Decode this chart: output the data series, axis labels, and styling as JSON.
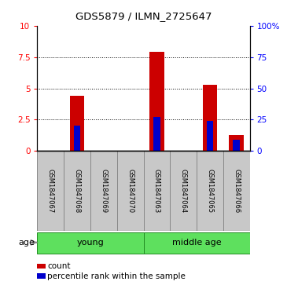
{
  "title": "GDS5879 / ILMN_2725647",
  "samples": [
    "GSM1847067",
    "GSM1847068",
    "GSM1847069",
    "GSM1847070",
    "GSM1847063",
    "GSM1847064",
    "GSM1847065",
    "GSM1847066"
  ],
  "count_values": [
    0,
    4.4,
    0,
    0,
    7.9,
    0,
    5.3,
    1.3
  ],
  "percentile_values": [
    0,
    20,
    0,
    0,
    27,
    0,
    24,
    9
  ],
  "groups": [
    {
      "label": "young",
      "start": 0,
      "end": 3
    },
    {
      "label": "middle age",
      "start": 4,
      "end": 7
    }
  ],
  "group_color": "#5EE05E",
  "group_border_color": "#228B22",
  "bar_color_red": "#CC0000",
  "bar_color_blue": "#0000CC",
  "ylim_left": [
    0,
    10
  ],
  "ylim_right": [
    0,
    100
  ],
  "yticks_left": [
    0,
    2.5,
    5.0,
    7.5,
    10
  ],
  "ytick_labels_left": [
    "0",
    "2.5",
    "5",
    "7.5",
    "10"
  ],
  "yticks_right": [
    0,
    25,
    50,
    75,
    100
  ],
  "ytick_labels_right": [
    "0",
    "25",
    "50",
    "75",
    "100%"
  ],
  "age_label": "age",
  "legend_count": "count",
  "legend_percentile": "percentile rank within the sample",
  "sample_box_color": "#C8C8C8",
  "bar_width": 0.55,
  "blue_bar_width": 0.25
}
